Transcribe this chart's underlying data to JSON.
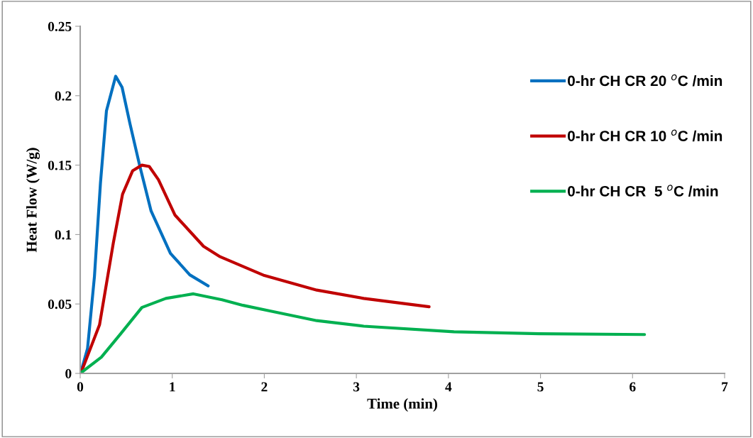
{
  "chart_data": {
    "type": "line",
    "xlabel": "Time (min)",
    "ylabel": "Heat Flow (W/g)",
    "xlim": [
      0,
      7
    ],
    "xticks": [
      0,
      1,
      2,
      3,
      4,
      5,
      6,
      7
    ],
    "ylim": [
      0,
      0.25
    ],
    "yticks": [
      0,
      0.05,
      0.1,
      0.15,
      0.2,
      0.25
    ],
    "grid": false,
    "legend": "right",
    "marker": "none",
    "line_style": "solid",
    "series": [
      {
        "name": "0-hr CH CR 20 $^{o}$C /min",
        "color": "#0070c0",
        "x": [
          0.01,
          0.08,
          0.155,
          0.22,
          0.285,
          0.385,
          0.455,
          0.54,
          0.645,
          0.77,
          0.98,
          1.19,
          1.39
        ],
        "values": [
          0.0015,
          0.018,
          0.07,
          0.137,
          0.189,
          0.214,
          0.206,
          0.18,
          0.15,
          0.117,
          0.0865,
          0.071,
          0.063
        ]
      },
      {
        "name": "0-hr CH CR 10 $^{o}$C /min",
        "color": "#c00000",
        "x": [
          0.015,
          0.21,
          0.36,
          0.46,
          0.57,
          0.67,
          0.75,
          0.85,
          1.03,
          1.34,
          1.52,
          2.0,
          2.57,
          3.08,
          3.79
        ],
        "values": [
          0.0015,
          0.035,
          0.094,
          0.129,
          0.146,
          0.15,
          0.149,
          0.1395,
          0.114,
          0.0915,
          0.084,
          0.0705,
          0.06,
          0.054,
          0.048
        ]
      },
      {
        "name": "0-hr CH CR  5 $^{o}$C /min",
        "color": "#00b050",
        "x": [
          0.01,
          0.23,
          0.44,
          0.67,
          0.93,
          1.23,
          1.54,
          1.77,
          2.06,
          2.57,
          3.08,
          4.06,
          4.99,
          6.13
        ],
        "values": [
          0.0005,
          0.0117,
          0.0286,
          0.0475,
          0.054,
          0.0573,
          0.053,
          0.049,
          0.045,
          0.038,
          0.034,
          0.03,
          0.0286,
          0.028
        ]
      }
    ]
  }
}
